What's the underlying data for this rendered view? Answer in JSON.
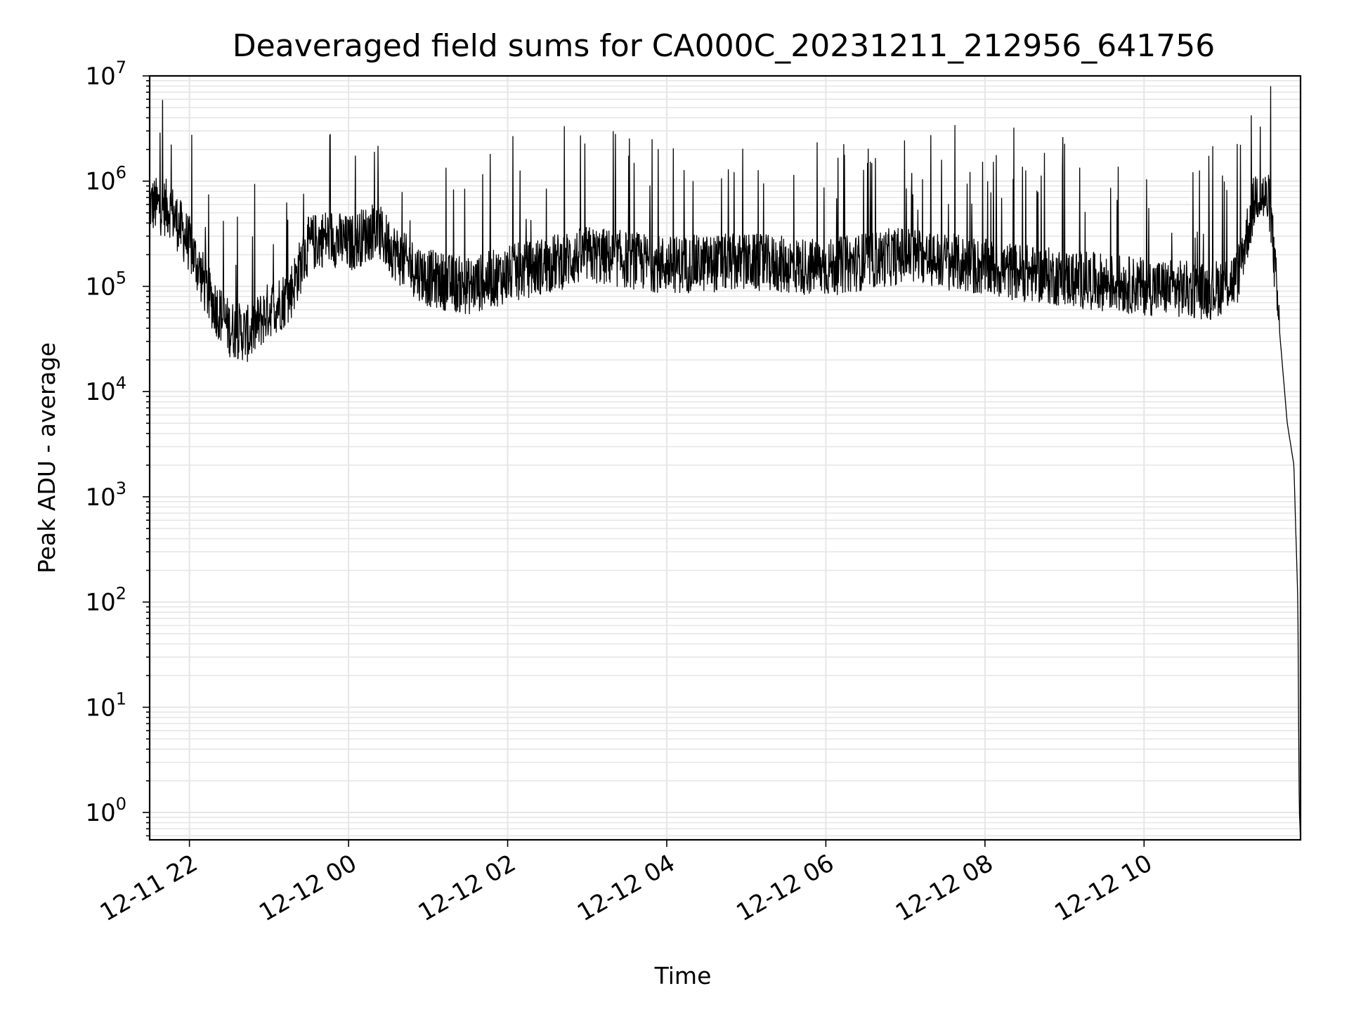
{
  "chart_data": {
    "type": "line",
    "title": "Deaveraged field sums for CA000C_20231211_212956_641756",
    "xlabel": "Time",
    "ylabel": "Peak ADU - average",
    "yscale": "log",
    "ylim": [
      0.55,
      10000000
    ],
    "xlim": [
      "12-11 21:30",
      "12-12 11:58"
    ],
    "grid": true,
    "line_color": "#000000",
    "grid_color": "#e6e6e6",
    "x_tick_labels": [
      "12-11 22",
      "12-12 00",
      "12-12 02",
      "12-12 04",
      "12-12 06",
      "12-12 08",
      "12-12 10"
    ],
    "y_tick_labels": [
      {
        "base": "10",
        "exp": "0"
      },
      {
        "base": "10",
        "exp": "1"
      },
      {
        "base": "10",
        "exp": "2"
      },
      {
        "base": "10",
        "exp": "3"
      },
      {
        "base": "10",
        "exp": "4"
      },
      {
        "base": "10",
        "exp": "5"
      },
      {
        "base": "10",
        "exp": "6"
      },
      {
        "base": "10",
        "exp": "7"
      }
    ],
    "series": [
      {
        "x": [
          "12-11 21:30",
          "12-11 21:45",
          "12-11 22:00",
          "12-11 22:15",
          "12-11 22:30",
          "12-11 22:45",
          "12-11 23:00",
          "12-11 23:15",
          "12-11 23:30",
          "12-11 23:45",
          "12-12 00:00",
          "12-12 00:20",
          "12-12 00:40",
          "12-12 01:00",
          "12-12 01:30",
          "12-12 02:00",
          "12-12 03:00",
          "12-12 04:00",
          "12-12 05:00",
          "12-12 06:00",
          "12-12 07:00",
          "12-12 08:00",
          "12-12 09:00",
          "12-12 10:00",
          "12-12 10:50",
          "12-12 11:10",
          "12-12 11:25",
          "12-12 11:35",
          "12-12 11:42",
          "12-12 11:48",
          "12-12 11:53",
          "12-12 11:56",
          "12-12 11:57",
          "12-12 11:58"
        ],
        "y": [
          600000,
          550000,
          250000,
          80000,
          40000,
          35000,
          60000,
          80000,
          250000,
          300000,
          250000,
          350000,
          180000,
          120000,
          100000,
          130000,
          200000,
          160000,
          170000,
          150000,
          200000,
          150000,
          120000,
          100000,
          90000,
          120000,
          800000,
          600000,
          40000,
          5000,
          2000,
          100,
          1.1,
          0.55
        ]
      }
    ]
  }
}
